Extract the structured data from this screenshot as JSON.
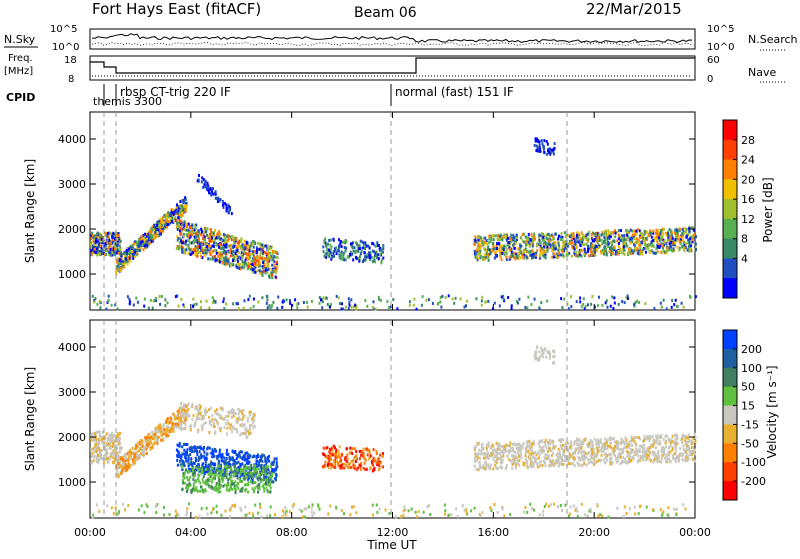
{
  "header": {
    "title": "Fort Hays East (fitACF)",
    "beam": "Beam 06",
    "date": "22/Mar/2015"
  },
  "panels": {
    "nsky_label": "N.Sky",
    "nsearch_label": "N.Search",
    "freq_label_1": "Freq.",
    "freq_label_2": "[MHz]",
    "nave_label": "Nave",
    "cpid_label": "CPID",
    "nsky_ticks": [
      "10^5",
      "10^0"
    ],
    "nsearch_ticks": [
      "10^5",
      "10^0"
    ],
    "freq_ticks": [
      "18",
      "8"
    ],
    "nave_ticks": [
      "60",
      "0"
    ]
  },
  "cpid_annotations": [
    {
      "text": "rbsp CT-trig 220 IF",
      "hour": 1.0
    },
    {
      "text": "themis 3300",
      "hour": 0.2
    },
    {
      "text": "normal (fast) 151 IF",
      "hour": 12.0
    }
  ],
  "colors": {
    "power_scale": [
      "#0000ff",
      "#2050c0",
      "#3a8a6a",
      "#58b050",
      "#a0c030",
      "#f0c000",
      "#ff8000",
      "#ff4000",
      "#ff0000"
    ],
    "velocity_scale": [
      "#0040ff",
      "#2060a0",
      "#408060",
      "#60c040",
      "#c8c8c0",
      "#e8b030",
      "#ff8000",
      "#ff4000",
      "#ff0000"
    ]
  },
  "chart_data": [
    {
      "type": "heatmap",
      "name": "power",
      "ylabel": "Slant Range [km]",
      "yticks": [
        "1000",
        "2000",
        "3000",
        "4000"
      ],
      "ylim": [
        200,
        4600
      ],
      "colorbar_label": "Power [dB]",
      "colorbar_ticks": [
        "28",
        "24",
        "20",
        "16",
        "12",
        "8",
        "4"
      ],
      "colorbar_range": [
        0,
        32
      ]
    },
    {
      "type": "heatmap",
      "name": "velocity",
      "ylabel": "Slant Range [km]",
      "yticks": [
        "1000",
        "2000",
        "3000",
        "4000"
      ],
      "ylim": [
        200,
        4600
      ],
      "colorbar_label": "Velocity [m s⁻¹]",
      "colorbar_ticks": [
        "200",
        "100",
        "50",
        "15",
        "-15",
        "-50",
        "-100",
        "-200"
      ],
      "colorbar_range": [
        -250,
        250
      ]
    }
  ],
  "xaxis": {
    "label": "Time UT",
    "ticks": [
      "00:00",
      "04:00",
      "08:00",
      "12:00",
      "16:00",
      "20:00",
      "00:00"
    ],
    "range_hours": [
      0,
      24
    ]
  }
}
